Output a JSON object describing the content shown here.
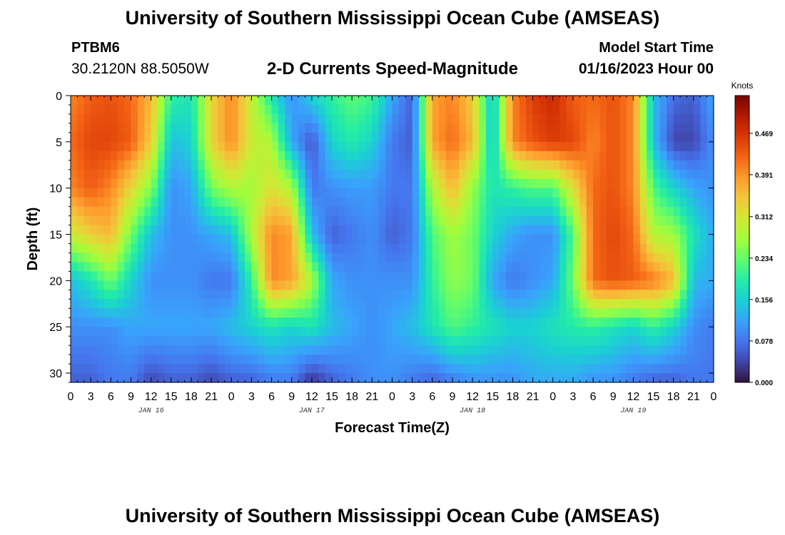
{
  "header": {
    "title": "University of Southern Mississippi Ocean Cube (AMSEAS)",
    "station_id": "PTBM6",
    "station_coords": "30.2120N  88.5050W",
    "subtitle": "2-D Currents Speed-Magnitude",
    "model_start_label": "Model Start Time",
    "model_start_value": "01/16/2023 Hour 00"
  },
  "footer": {
    "title": "University of Southern Mississippi Ocean Cube (AMSEAS)"
  },
  "colors": {
    "palette": [
      "#30123b",
      "#4145ab",
      "#4675ed",
      "#39a2fc",
      "#1bcfd4",
      "#24eca6",
      "#61fc6c",
      "#a4fc3b",
      "#d1e834",
      "#f3c63a",
      "#fe9b2d",
      "#f36315",
      "#d93806",
      "#b11901",
      "#7a0403"
    ]
  },
  "chart_data": {
    "type": "heatmap",
    "title": "2-D Currents Speed-Magnitude",
    "xlabel": "Forecast Time(Z)",
    "ylabel": "Depth (ft)",
    "x_hours_range": [
      0,
      96
    ],
    "y_depth_range_ft": [
      0,
      31
    ],
    "y_reversed": true,
    "x_tick_labels": [
      "0",
      "3",
      "6",
      "9",
      "12",
      "15",
      "18",
      "21",
      "0",
      "3",
      "6",
      "9",
      "12",
      "15",
      "18",
      "21",
      "0",
      "3",
      "6",
      "9",
      "12",
      "15",
      "18",
      "21",
      "0",
      "3",
      "6",
      "9",
      "12",
      "15",
      "18",
      "21",
      "0"
    ],
    "y_tick_values": [
      0,
      5,
      10,
      15,
      20,
      25,
      30
    ],
    "y_tick_labels": [
      "0",
      "5",
      "10",
      "15",
      "20",
      "25",
      "30"
    ],
    "date_labels": [
      {
        "label": "JAN 16",
        "hour": 12
      },
      {
        "label": "JAN 17",
        "hour": 36
      },
      {
        "label": "JAN 18",
        "hour": 60
      },
      {
        "label": "JAN 19",
        "hour": 84
      }
    ],
    "colorbar": {
      "unit": "Knots",
      "min": 0.0,
      "max": 0.54,
      "tick_values": [
        0.0,
        0.078,
        0.156,
        0.234,
        0.312,
        0.391,
        0.469
      ],
      "tick_labels": [
        "0.000",
        "0.078",
        "0.156",
        "0.234",
        "0.312",
        "0.391",
        "0.469"
      ]
    },
    "depths_ft": [
      0,
      5,
      10,
      15,
      20,
      25,
      31
    ],
    "hours": [
      0,
      3,
      6,
      9,
      12,
      15,
      18,
      21,
      24,
      27,
      30,
      33,
      36,
      39,
      42,
      45,
      48,
      51,
      54,
      57,
      60,
      63,
      66,
      69,
      72,
      75,
      78,
      81,
      84,
      87,
      90,
      93,
      96
    ],
    "values_knots": [
      [
        0.4,
        0.43,
        0.44,
        0.42,
        0.36,
        0.2,
        0.18,
        0.33,
        0.4,
        0.3,
        0.18,
        0.1,
        0.16,
        0.2,
        0.23,
        0.21,
        0.12,
        0.06,
        0.38,
        0.4,
        0.34,
        0.14,
        0.4,
        0.46,
        0.48,
        0.43,
        0.42,
        0.44,
        0.4,
        0.14,
        0.07,
        0.06,
        0.12
      ],
      [
        0.42,
        0.45,
        0.45,
        0.43,
        0.34,
        0.14,
        0.16,
        0.33,
        0.4,
        0.3,
        0.28,
        0.12,
        0.05,
        0.16,
        0.19,
        0.16,
        0.08,
        0.06,
        0.38,
        0.42,
        0.36,
        0.14,
        0.4,
        0.44,
        0.46,
        0.45,
        0.4,
        0.44,
        0.4,
        0.14,
        0.04,
        0.04,
        0.1
      ],
      [
        0.4,
        0.43,
        0.4,
        0.33,
        0.25,
        0.1,
        0.12,
        0.24,
        0.28,
        0.27,
        0.32,
        0.28,
        0.08,
        0.1,
        0.11,
        0.11,
        0.08,
        0.08,
        0.28,
        0.36,
        0.26,
        0.18,
        0.2,
        0.22,
        0.22,
        0.32,
        0.42,
        0.44,
        0.4,
        0.22,
        0.16,
        0.12,
        0.1
      ],
      [
        0.3,
        0.34,
        0.36,
        0.24,
        0.14,
        0.1,
        0.1,
        0.12,
        0.14,
        0.28,
        0.4,
        0.38,
        0.14,
        0.06,
        0.08,
        0.1,
        0.06,
        0.08,
        0.22,
        0.27,
        0.24,
        0.16,
        0.12,
        0.1,
        0.1,
        0.22,
        0.42,
        0.45,
        0.42,
        0.28,
        0.27,
        0.18,
        0.12
      ],
      [
        0.14,
        0.18,
        0.24,
        0.16,
        0.1,
        0.1,
        0.1,
        0.08,
        0.08,
        0.2,
        0.4,
        0.38,
        0.28,
        0.12,
        0.1,
        0.1,
        0.1,
        0.1,
        0.2,
        0.26,
        0.24,
        0.12,
        0.08,
        0.1,
        0.12,
        0.24,
        0.42,
        0.44,
        0.43,
        0.41,
        0.36,
        0.14,
        0.12
      ],
      [
        0.1,
        0.1,
        0.1,
        0.12,
        0.12,
        0.12,
        0.12,
        0.12,
        0.14,
        0.16,
        0.18,
        0.16,
        0.18,
        0.14,
        0.12,
        0.1,
        0.12,
        0.14,
        0.18,
        0.22,
        0.2,
        0.18,
        0.16,
        0.16,
        0.18,
        0.19,
        0.2,
        0.18,
        0.16,
        0.2,
        0.16,
        0.1,
        0.08
      ],
      [
        0.06,
        0.06,
        0.08,
        0.08,
        0.04,
        0.06,
        0.06,
        0.04,
        0.06,
        0.06,
        0.08,
        0.08,
        0.02,
        0.06,
        0.08,
        0.1,
        0.1,
        0.08,
        0.06,
        0.08,
        0.1,
        0.1,
        0.1,
        0.12,
        0.12,
        0.12,
        0.1,
        0.1,
        0.08,
        0.06,
        0.06,
        0.08,
        0.08
      ]
    ]
  }
}
